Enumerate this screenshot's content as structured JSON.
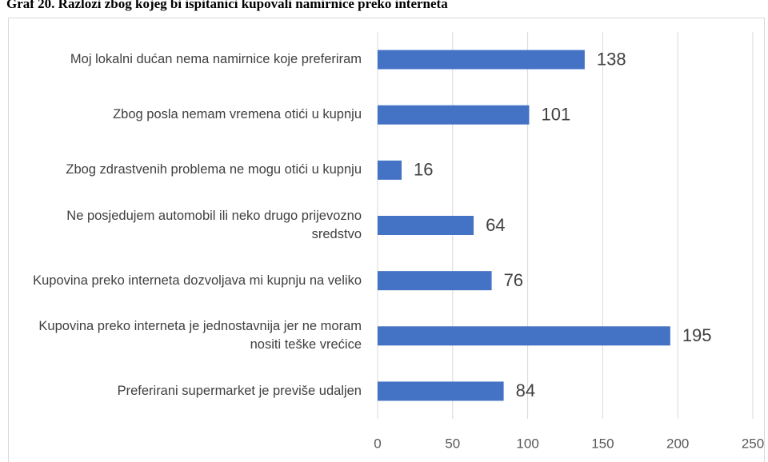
{
  "chart_data": {
    "type": "bar",
    "orientation": "horizontal",
    "title": "Graf 20. Razlozi zbog kojeg bi ispitanici kupovali namirnice preko interneta",
    "categories": [
      "Moj lokalni dućan nema namirnice koje preferiram",
      "Zbog posla nemam vremena otići u kupnju",
      "Zbog zdrastvenih problema ne mogu otići u kupnju",
      "Ne posjedujem automobil ili neko drugo prijevozno sredstvo",
      "Kupovina preko interneta dozvoljava mi kupnju na veliko",
      "Kupovina preko interneta je jednostavnija jer ne moram nositi teške vrećice",
      "Preferirani supermarket je previše udaljen"
    ],
    "values": [
      138,
      101,
      16,
      64,
      76,
      195,
      84
    ],
    "color": "#4472c4",
    "xlim": [
      0,
      250
    ],
    "xticks": [
      0,
      50,
      100,
      150,
      200,
      250
    ],
    "grid": true
  }
}
